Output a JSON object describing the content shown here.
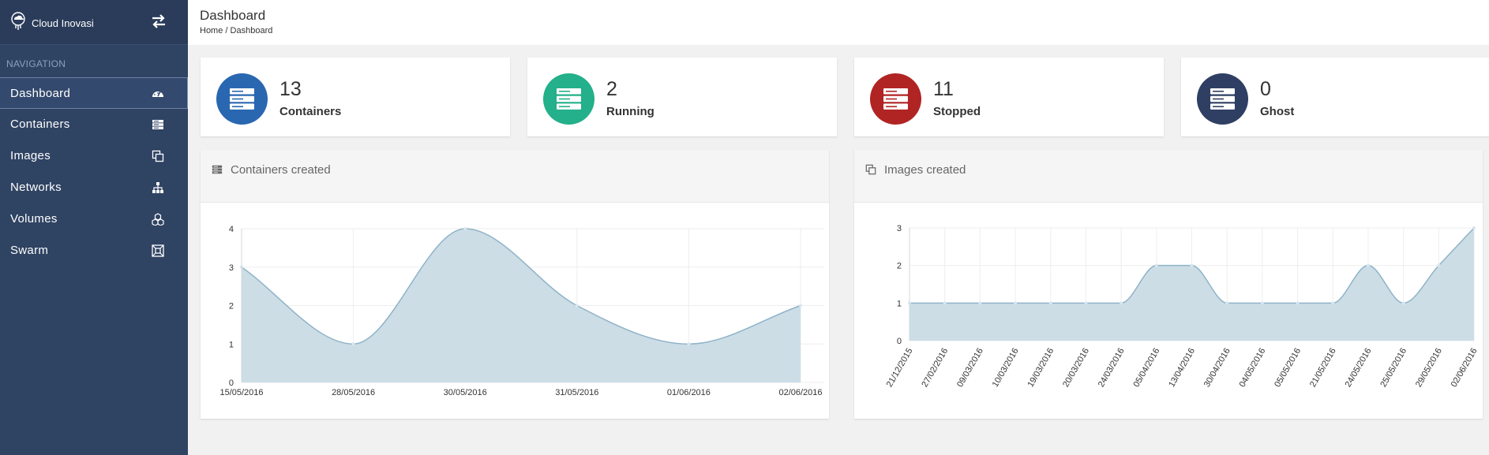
{
  "app": {
    "name": "Cloud Inovasi"
  },
  "nav": {
    "heading": "NAVIGATION",
    "items": [
      {
        "label": "Dashboard",
        "icon": "dashboard-icon",
        "active": true
      },
      {
        "label": "Containers",
        "icon": "server-icon"
      },
      {
        "label": "Images",
        "icon": "copy-icon"
      },
      {
        "label": "Networks",
        "icon": "sitemap-icon"
      },
      {
        "label": "Volumes",
        "icon": "cubes-icon"
      },
      {
        "label": "Swarm",
        "icon": "swarm-icon"
      }
    ]
  },
  "header": {
    "title": "Dashboard",
    "breadcrumb": {
      "home": "Home",
      "sep": "/",
      "current": "Dashboard"
    }
  },
  "stats": [
    {
      "value": "13",
      "label": "Containers",
      "color": "#2a67b1"
    },
    {
      "value": "2",
      "label": "Running",
      "color": "#23b08a"
    },
    {
      "value": "11",
      "label": "Stopped",
      "color": "#b12424"
    },
    {
      "value": "0",
      "label": "Ghost",
      "color": "#2f3f63"
    }
  ],
  "panels": {
    "containers": {
      "title": "Containers created",
      "icon": "server-icon"
    },
    "images": {
      "title": "Images created",
      "icon": "copy-icon"
    }
  },
  "chart_data": [
    {
      "type": "area",
      "categories": [
        "15/05/2016",
        "28/05/2016",
        "30/05/2016",
        "31/05/2016",
        "01/06/2016",
        "02/06/2016"
      ],
      "series": [
        {
          "values": [
            3,
            1,
            4,
            2,
            1,
            2
          ]
        }
      ],
      "ylim": [
        0,
        4
      ],
      "yticks": [
        0,
        1,
        2,
        3,
        4
      ],
      "grid": true,
      "fill_color": "#ccdde6",
      "line_color": "#8fb3c8"
    },
    {
      "type": "area",
      "categories": [
        "21/12/2015",
        "27/02/2016",
        "09/03/2016",
        "10/03/2016",
        "19/03/2016",
        "20/03/2016",
        "24/03/2016",
        "05/04/2016",
        "13/04/2016",
        "30/04/2016",
        "04/05/2016",
        "05/05/2016",
        "21/05/2016",
        "24/05/2016",
        "25/05/2016",
        "29/05/2016",
        "02/06/2016"
      ],
      "series": [
        {
          "values": [
            1,
            1,
            1,
            1,
            1,
            1,
            1,
            2,
            2,
            1,
            1,
            1,
            1,
            2,
            1,
            2,
            3
          ]
        }
      ],
      "ylim": [
        0,
        3
      ],
      "yticks": [
        0,
        1,
        2,
        3
      ],
      "grid": true,
      "fill_color": "#ccdde6",
      "line_color": "#8fb3c8"
    }
  ]
}
